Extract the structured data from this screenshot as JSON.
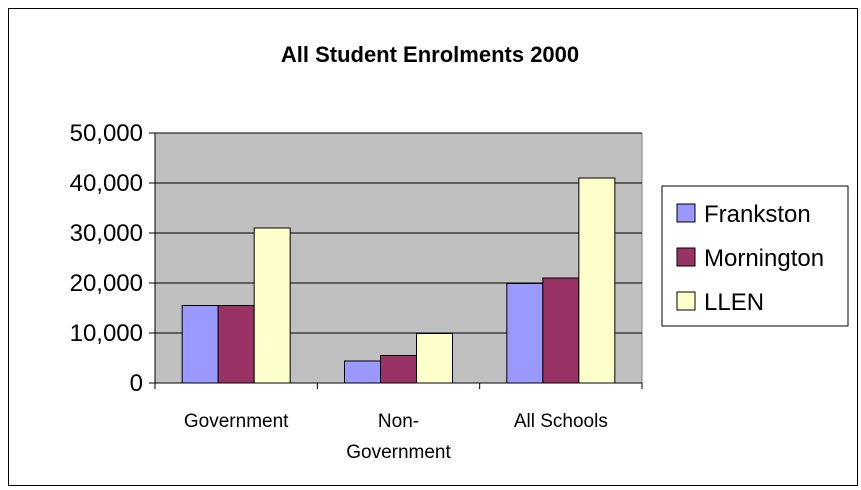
{
  "chart_data": {
    "type": "bar",
    "title": "All Student Enrolments 2000",
    "categories": [
      [
        "Government"
      ],
      [
        "Non-",
        "Government"
      ],
      [
        "All Schools"
      ]
    ],
    "series": [
      {
        "name": "Frankston",
        "color": "#9999ff",
        "values": [
          15500,
          4400,
          19900
        ]
      },
      {
        "name": "Mornington",
        "color": "#993366",
        "values": [
          15500,
          5500,
          21000
        ]
      },
      {
        "name": "LLEN",
        "color": "#ffffcc",
        "values": [
          31000,
          9900,
          41000
        ]
      }
    ],
    "ylim": [
      0,
      50000
    ],
    "yticks": [
      0,
      10000,
      20000,
      30000,
      40000,
      50000
    ],
    "ytick_labels": [
      "0",
      "10,000",
      "20,000",
      "30,000",
      "40,000",
      "50,000"
    ],
    "plot_background": "#c0c0c0",
    "grid": true,
    "legend_position": "right"
  }
}
